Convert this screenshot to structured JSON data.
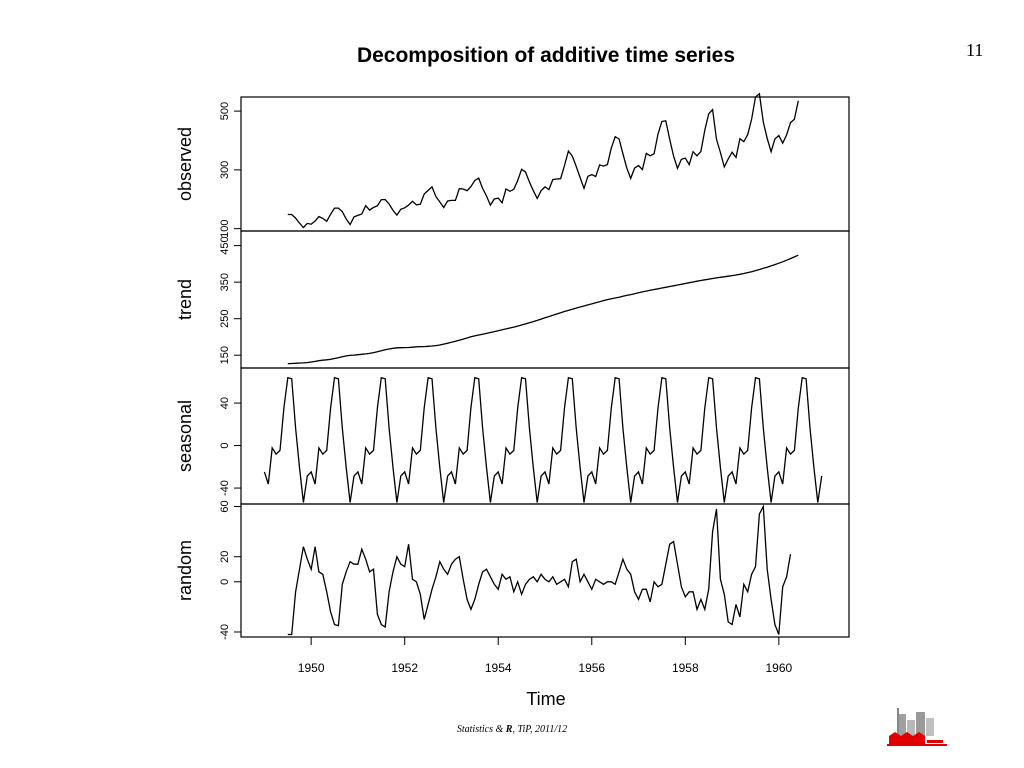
{
  "page": {
    "number": "11"
  },
  "footer": {
    "pre": "Statistics & ",
    "bold": "R",
    "post": ", TiP, 2011/12"
  },
  "chart_data": {
    "type": "line",
    "title": "Decomposition of additive time series",
    "xlabel": "Time",
    "xlim": [
      1948.5,
      1961.5
    ],
    "xticks": [
      "1950",
      "1952",
      "1954",
      "1956",
      "1958",
      "1960"
    ],
    "xtick_values": [
      1950,
      1952,
      1954,
      1956,
      1958,
      1960
    ],
    "grid": false,
    "panels": [
      {
        "name": "observed",
        "ylabel": "observed",
        "ylim": [
          92,
          548
        ],
        "yticks": [
          "100",
          "300",
          "500"
        ],
        "ytick_values": [
          100,
          300,
          500
        ],
        "x_start": 1949.5,
        "x_step": 0.0833333,
        "values": [
          148,
          148,
          136,
          119,
          104,
          118,
          115,
          126,
          141,
          135,
          125,
          149,
          170,
          170,
          158,
          133,
          114,
          140,
          145,
          150,
          178,
          163,
          172,
          178,
          199,
          199,
          184,
          162,
          146,
          166,
          171,
          180,
          193,
          181,
          183,
          218,
          230,
          242,
          209,
          191,
          172,
          194,
          196,
          196,
          236,
          235,
          229,
          243,
          264,
          272,
          237,
          211,
          180,
          201,
          204,
          188,
          235,
          227,
          234,
          264,
          302,
          293,
          259,
          229,
          203,
          229,
          242,
          233,
          267,
          269,
          270,
          315,
          364,
          347,
          312,
          274,
          237,
          278,
          284,
          277,
          317,
          313,
          318,
          374,
          413,
          405,
          355,
          306,
          271,
          306,
          315,
          301,
          356,
          348,
          355,
          422,
          465,
          467,
          404,
          347,
          305,
          336,
          340,
          318,
          362,
          348,
          363,
          435,
          491,
          505,
          404,
          359,
          310,
          337,
          360,
          342,
          406,
          396,
          420,
          472,
          548,
          559,
          463,
          407,
          362,
          405,
          417,
          391,
          419,
          461,
          472,
          535
        ]
      },
      {
        "name": "trend",
        "ylabel": "trend",
        "ylim": [
          115,
          490
        ],
        "yticks": [
          "150",
          "250",
          "350",
          "450"
        ],
        "ytick_values": [
          150,
          250,
          350,
          450
        ],
        "x_start": 1949.5,
        "x_step": 0.0833333,
        "values": [
          126.8,
          127.3,
          127.9,
          128.6,
          129.0,
          129.8,
          131.3,
          133.1,
          134.9,
          136.4,
          137.4,
          138.8,
          140.9,
          143.2,
          145.7,
          148.0,
          149.6,
          150.4,
          151.5,
          152.5,
          153.6,
          155.0,
          157.1,
          159.5,
          162.0,
          164.7,
          167.0,
          169.0,
          170.2,
          170.6,
          170.8,
          171.2,
          172.0,
          172.9,
          173.5,
          173.7,
          174.4,
          175.2,
          176.2,
          178.0,
          180.4,
          182.8,
          185.3,
          188.0,
          191.0,
          194.0,
          197.2,
          200.4,
          203.0,
          205.4,
          207.6,
          209.8,
          212.3,
          214.7,
          217.1,
          219.5,
          221.9,
          224.4,
          227.0,
          229.7,
          232.6,
          235.6,
          238.8,
          242.0,
          245.3,
          248.8,
          252.3,
          255.8,
          259.3,
          262.7,
          266.2,
          269.6,
          272.6,
          275.8,
          279.0,
          282.0,
          284.8,
          287.6,
          290.5,
          293.5,
          296.6,
          299.5,
          302.3,
          304.7,
          306.7,
          308.8,
          311.2,
          313.7,
          316.0,
          318.4,
          320.8,
          323.3,
          325.6,
          327.8,
          329.8,
          331.8,
          333.9,
          336.0,
          338.1,
          340.1,
          342.1,
          344.2,
          346.4,
          348.4,
          350.4,
          352.5,
          354.5,
          356.4,
          358.2,
          359.9,
          361.6,
          363.2,
          364.7,
          366.2,
          367.8,
          369.5,
          371.4,
          373.6,
          376.0,
          378.7,
          381.6,
          384.6,
          387.8,
          391.0,
          394.4,
          398.0,
          401.8,
          405.8,
          410.1,
          414.5,
          419.1,
          423.8
        ]
      },
      {
        "name": "seasonal",
        "ylabel": "seasonal",
        "ylim": [
          -55,
          73
        ],
        "yticks": [
          "-40",
          "0",
          "40"
        ],
        "ytick_values": [
          -40,
          0,
          40
        ],
        "x_start": 1949.0,
        "x_step": 0.0833333,
        "values": [
          -24.75,
          -36.19,
          -2.24,
          -8.04,
          -4.51,
          35.4,
          63.83,
          62.82,
          16.52,
          -20.64,
          -53.59,
          -28.62,
          -24.75,
          -36.19,
          -2.24,
          -8.04,
          -4.51,
          35.4,
          63.83,
          62.82,
          16.52,
          -20.64,
          -53.59,
          -28.62,
          -24.75,
          -36.19,
          -2.24,
          -8.04,
          -4.51,
          35.4,
          63.83,
          62.82,
          16.52,
          -20.64,
          -53.59,
          -28.62,
          -24.75,
          -36.19,
          -2.24,
          -8.04,
          -4.51,
          35.4,
          63.83,
          62.82,
          16.52,
          -20.64,
          -53.59,
          -28.62,
          -24.75,
          -36.19,
          -2.24,
          -8.04,
          -4.51,
          35.4,
          63.83,
          62.82,
          16.52,
          -20.64,
          -53.59,
          -28.62,
          -24.75,
          -36.19,
          -2.24,
          -8.04,
          -4.51,
          35.4,
          63.83,
          62.82,
          16.52,
          -20.64,
          -53.59,
          -28.62,
          -24.75,
          -36.19,
          -2.24,
          -8.04,
          -4.51,
          35.4,
          63.83,
          62.82,
          16.52,
          -20.64,
          -53.59,
          -28.62,
          -24.75,
          -36.19,
          -2.24,
          -8.04,
          -4.51,
          35.4,
          63.83,
          62.82,
          16.52,
          -20.64,
          -53.59,
          -28.62,
          -24.75,
          -36.19,
          -2.24,
          -8.04,
          -4.51,
          35.4,
          63.83,
          62.82,
          16.52,
          -20.64,
          -53.59,
          -28.62,
          -24.75,
          -36.19,
          -2.24,
          -8.04,
          -4.51,
          35.4,
          63.83,
          62.82,
          16.52,
          -20.64,
          -53.59,
          -28.62,
          -24.75,
          -36.19,
          -2.24,
          -8.04,
          -4.51,
          35.4,
          63.83,
          62.82,
          16.52,
          -20.64,
          -53.59,
          -28.62,
          -24.75,
          -36.19,
          -2.24,
          -8.04,
          -4.51,
          35.4,
          63.83,
          62.82,
          16.52,
          -20.64,
          -53.59,
          -28.62
        ]
      },
      {
        "name": "random",
        "ylabel": "random",
        "ylim": [
          -44,
          62
        ],
        "yticks": [
          "-40",
          "0",
          "20",
          "60"
        ],
        "ytick_values": [
          -40,
          0,
          20,
          60
        ],
        "x_start": 1949.5,
        "x_step": 0.0833333,
        "values": [
          -42,
          -42,
          -8,
          10,
          28,
          18,
          10,
          28,
          8,
          6,
          -8,
          -24,
          -34,
          -35,
          -2,
          8,
          16,
          14,
          14,
          26,
          18,
          8,
          10,
          -26,
          -34,
          -36,
          -8,
          8,
          20,
          14,
          12,
          30,
          2,
          0,
          -10,
          -30,
          -18,
          -6,
          4,
          16,
          10,
          6,
          14,
          18,
          20,
          2,
          -14,
          -22,
          -14,
          -2,
          8,
          10,
          4,
          -2,
          -6,
          6,
          2,
          4,
          -8,
          0,
          -10,
          -2,
          2,
          4,
          0,
          6,
          2,
          0,
          4,
          -2,
          0,
          2,
          -4,
          16,
          18,
          0,
          6,
          0,
          -6,
          2,
          0,
          -2,
          0,
          0,
          -2,
          8,
          18,
          10,
          6,
          -8,
          -14,
          -6,
          -6,
          -16,
          0,
          -4,
          -2,
          14,
          30,
          32,
          14,
          -4,
          -12,
          -8,
          -8,
          -22,
          -14,
          -22,
          -6,
          40,
          58,
          2,
          -10,
          -32,
          -34,
          -18,
          -28,
          -2,
          -8,
          6,
          12,
          54,
          60,
          10,
          -14,
          -34,
          -42,
          -4,
          4,
          22
        ]
      }
    ]
  }
}
